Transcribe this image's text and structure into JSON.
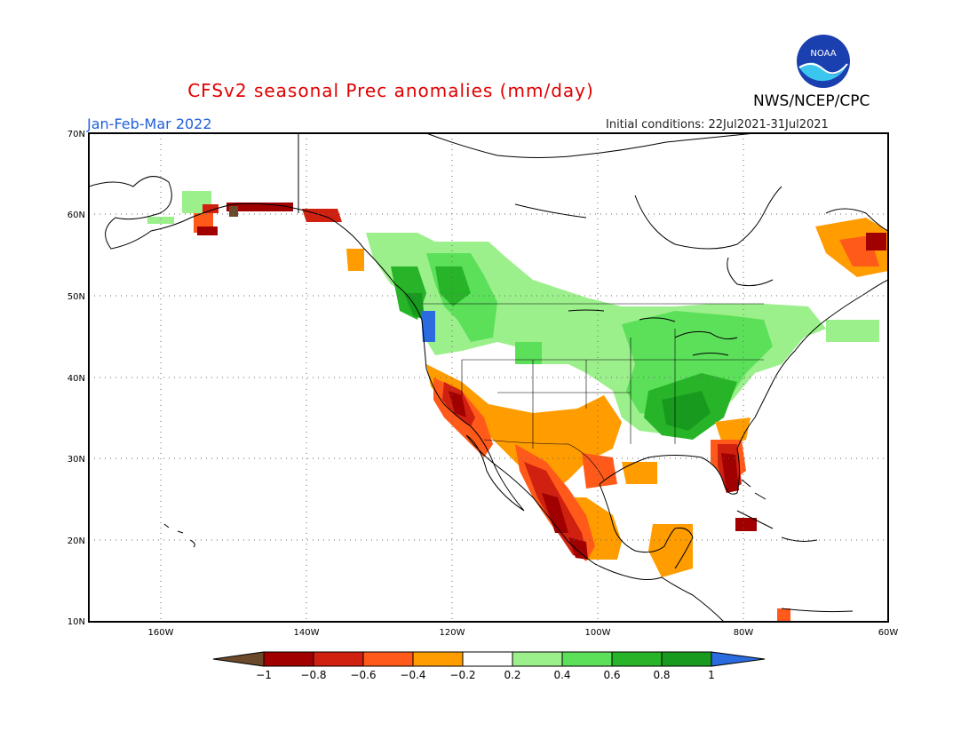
{
  "header": {
    "title": "CFSv2 seasonal Prec anomalies (mm/day)",
    "season": "Jan-Feb-Mar 2022",
    "initial_conditions": "Initial conditions: 22Jul2021-31Jul2021",
    "agency": "NWS/NCEP/CPC",
    "logo_text": "NOAA"
  },
  "map": {
    "lat_labels": [
      "70N",
      "60N",
      "50N",
      "40N",
      "30N",
      "20N",
      "10N"
    ],
    "lon_labels": [
      "160W",
      "140W",
      "120W",
      "100W",
      "80W",
      "60W"
    ]
  },
  "legend": {
    "labels": [
      "-1",
      "-0.8",
      "-0.6",
      "-0.4",
      "-0.2",
      "0.2",
      "0.4",
      "0.6",
      "0.8",
      "1"
    ],
    "colors": [
      "#6b4a2b",
      "#a00000",
      "#d02010",
      "#ff5a1a",
      "#ff9c00",
      "#ffffff",
      "#9cf08c",
      "#5ce05a",
      "#28b428",
      "#189a1e",
      "#2b6be0"
    ]
  },
  "colors": {
    "title": "#e00000",
    "season": "#1f5fd8"
  }
}
